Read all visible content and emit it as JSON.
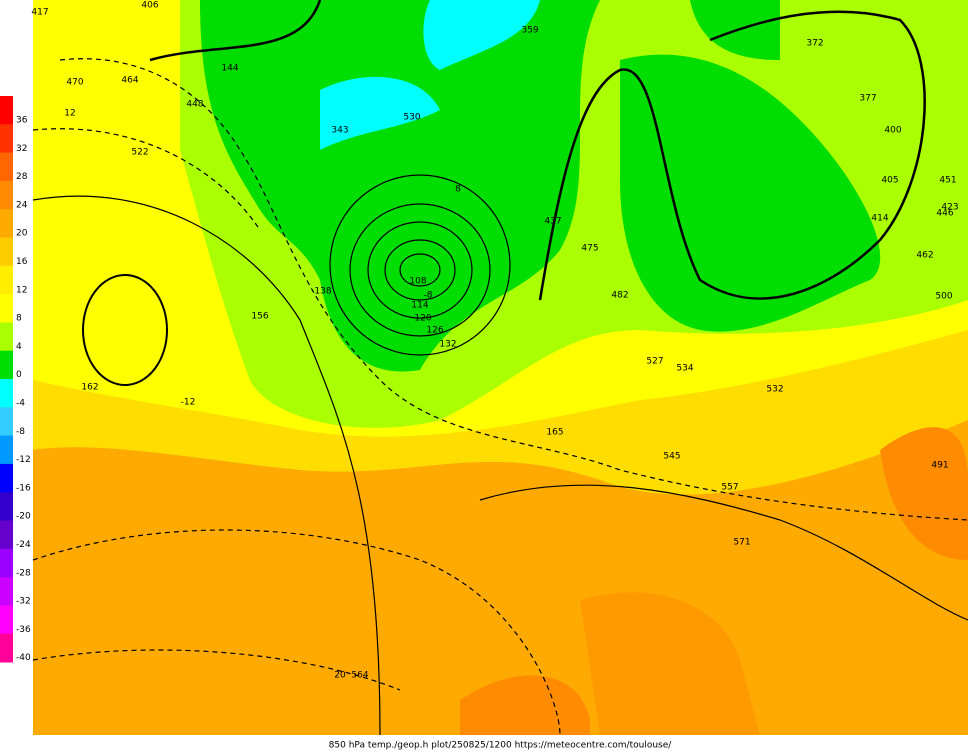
{
  "colorbar": {
    "labels": [
      "36",
      "32",
      "28",
      "24",
      "20",
      "16",
      "12",
      "8",
      "4",
      "0",
      "-4",
      "-8",
      "-12",
      "-16",
      "-20",
      "-24",
      "-28",
      "-32",
      "-36",
      "-40"
    ],
    "colors": [
      "#ff0000",
      "#ff3300",
      "#ff6600",
      "#ff8c00",
      "#ffaa00",
      "#ffcc00",
      "#ffee00",
      "#ffff00",
      "#aaff00",
      "#00dd00",
      "#00ffff",
      "#33ccff",
      "#0099ff",
      "#0000ff",
      "#3300cc",
      "#6600cc",
      "#9900ff",
      "#cc00ff",
      "#ff00ff",
      "#ff0099"
    ]
  },
  "map_labels": [
    "417",
    "406",
    "470",
    "464",
    "522",
    "448",
    "144",
    "343",
    "530",
    "359",
    "108",
    "114",
    "120",
    "126",
    "132",
    "138",
    "156",
    "162",
    "-12",
    "437",
    "475",
    "482",
    "527",
    "534",
    "545",
    "557",
    "571",
    "564",
    "20",
    "372",
    "377",
    "400",
    "405",
    "414",
    "423",
    "446",
    "451",
    "462",
    "500",
    "532",
    "491",
    "165",
    "12",
    "8",
    "-8"
  ],
  "footer": "850 hPa temp./geop.h plot/250825/1200 https://meteocentre.com/toulouse/"
}
